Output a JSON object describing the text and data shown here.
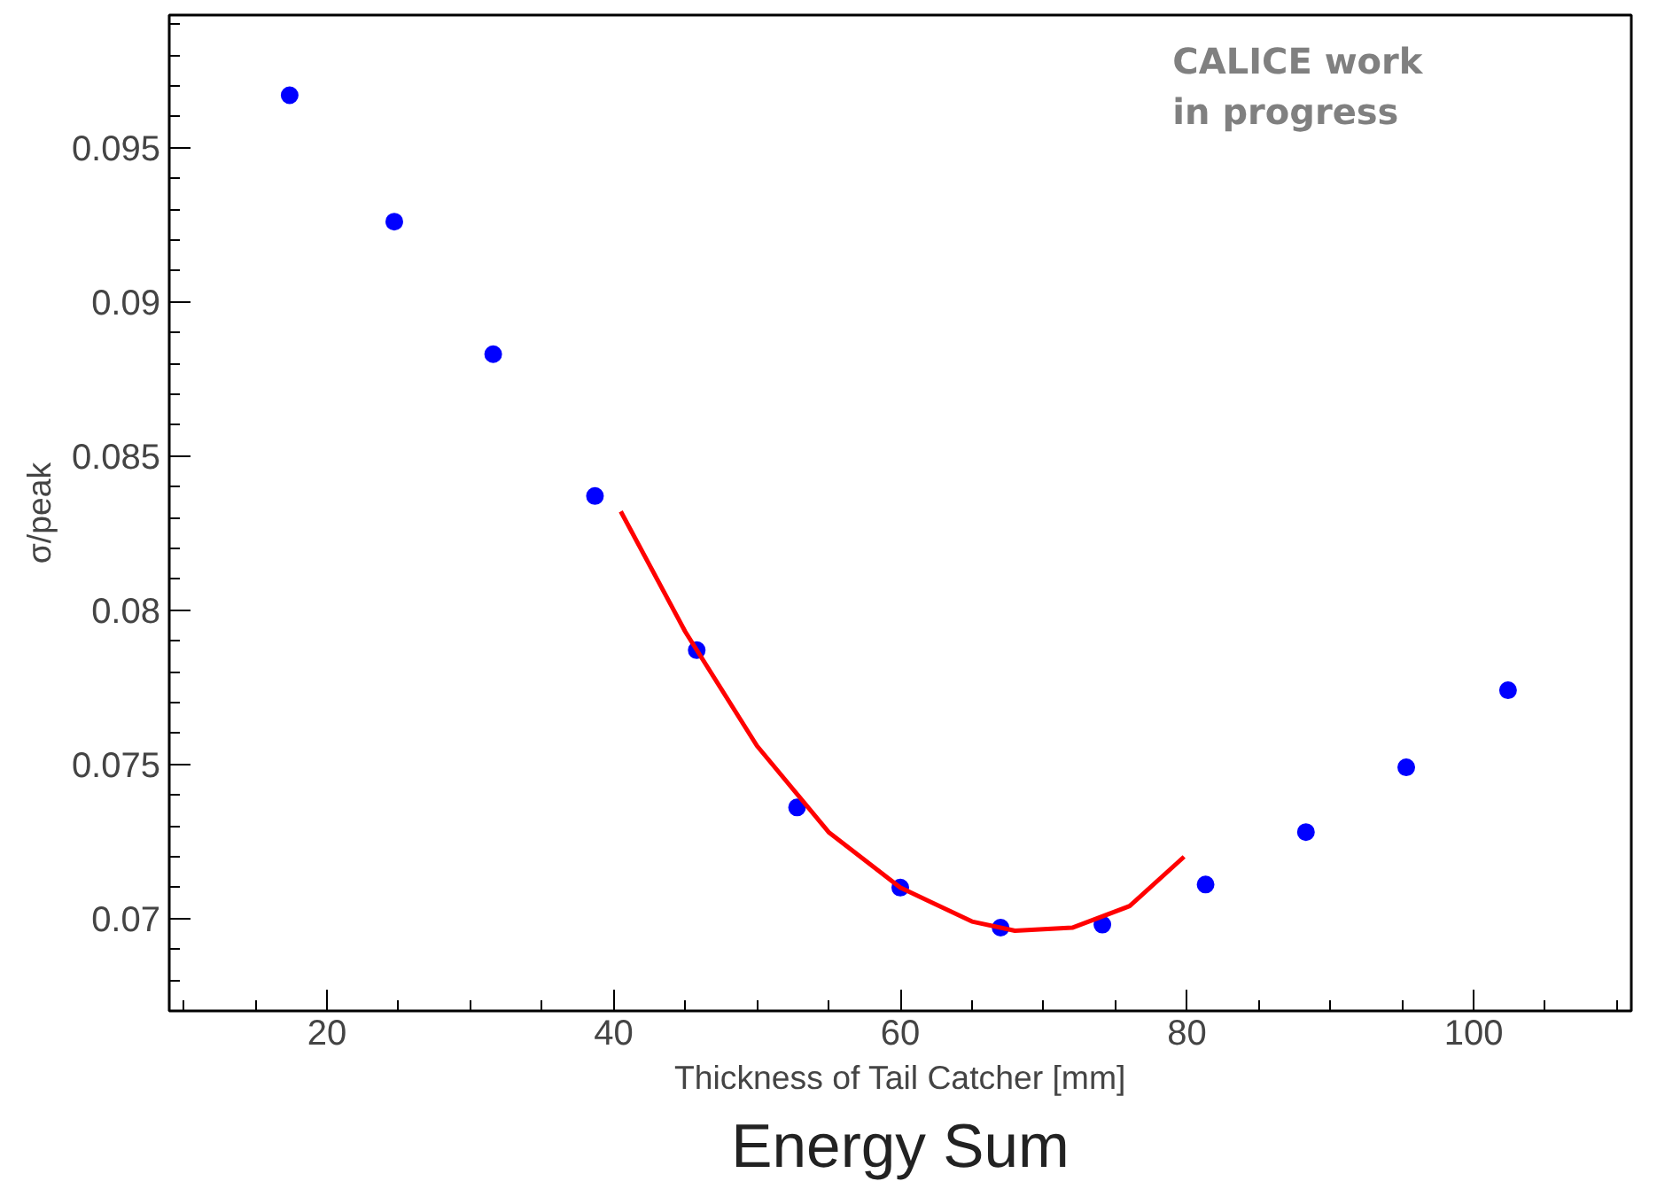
{
  "chart_data": {
    "type": "scatter",
    "title": "Energy Sum",
    "xlabel": "Thickness of Tail Catcher [mm]",
    "ylabel": "σ/peak",
    "annotations": [
      "CALICE work\nin progress"
    ],
    "xlim": [
      9,
      111
    ],
    "ylim": [
      0.067,
      0.0993
    ],
    "xticks": [
      20,
      40,
      60,
      80,
      100
    ],
    "yticks": [
      0.07,
      0.075,
      0.08,
      0.085,
      0.09,
      0.095
    ],
    "grid": false,
    "marker": "circle",
    "series": [
      {
        "color": "#0000ff",
        "x": [
          17.4,
          24.7,
          31.6,
          38.7,
          45.8,
          52.8,
          60.0,
          67.0,
          74.1,
          81.3,
          88.3,
          95.3,
          102.4
        ],
        "values": [
          0.0967,
          0.0926,
          0.0883,
          0.0837,
          0.0787,
          0.0736,
          0.071,
          0.0697,
          0.0698,
          0.0711,
          0.0728,
          0.0749,
          0.0774
        ]
      },
      {
        "type": "line",
        "color": "#ff0000",
        "line_style": "solid",
        "marker": "none",
        "x": [
          40.5,
          45,
          50,
          55,
          60,
          65,
          68,
          72,
          76,
          79.8
        ],
        "values": [
          0.0832,
          0.0793,
          0.0756,
          0.0728,
          0.071,
          0.0699,
          0.0696,
          0.0697,
          0.0704,
          0.072
        ]
      }
    ]
  }
}
